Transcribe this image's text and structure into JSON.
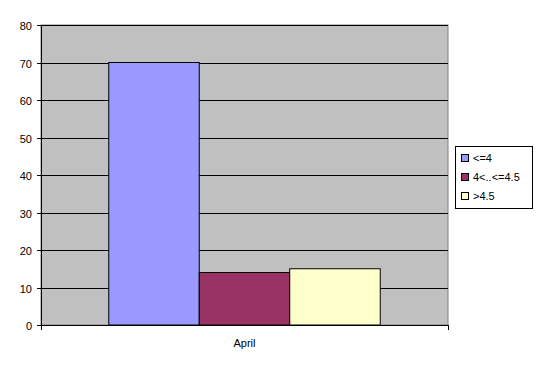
{
  "chart_data": {
    "type": "bar",
    "categories": [
      "April"
    ],
    "series": [
      {
        "name": "<=4",
        "color": "#9999ff",
        "values": [
          70
        ]
      },
      {
        "name": "4<..<=4.5",
        "color": "#993366",
        "values": [
          14
        ]
      },
      {
        "name": ">4.5",
        "color": "#ffffcc",
        "values": [
          15
        ]
      }
    ],
    "ylim": [
      0,
      80
    ],
    "yticks": [
      0,
      10,
      20,
      30,
      40,
      50,
      60,
      70,
      80
    ],
    "grid": true,
    "legend": "right"
  }
}
